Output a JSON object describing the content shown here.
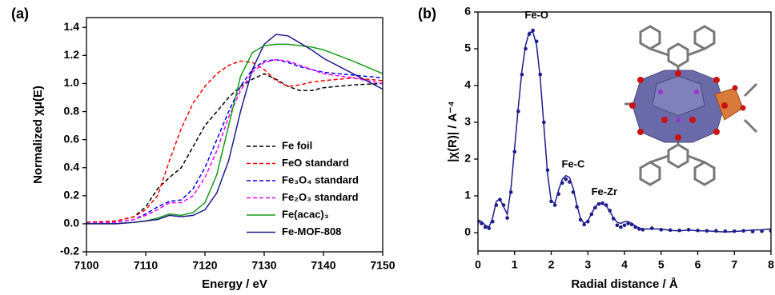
{
  "chart_data": [
    {
      "type": "line",
      "panel_label": "(a)",
      "x_label": "Energy / eV",
      "y_label": "Normalized χμ(E)",
      "x": [
        7100,
        7105,
        7108,
        7110,
        7112,
        7114,
        7116,
        7118,
        7120,
        7122,
        7124,
        7126,
        7128,
        7130,
        7132,
        7134,
        7136,
        7138,
        7140,
        7145,
        7150
      ],
      "xlim": [
        7100,
        7150
      ],
      "xticks": [
        7100,
        7110,
        7120,
        7130,
        7140,
        7150
      ],
      "ylim": [
        -0.2,
        1.47
      ],
      "yticks": [
        -0.2,
        {
          "value": 0,
          "label": "0.0"
        },
        0.2,
        0.4,
        0.6,
        0.8,
        {
          "value": 1,
          "label": "1.0"
        },
        1.2,
        1.4
      ],
      "legend": "lower right",
      "series": [
        {
          "name": "Fe foil",
          "color": "#000000",
          "line_style": "dashed",
          "values": [
            0.01,
            0.02,
            0.05,
            0.12,
            0.25,
            0.33,
            0.4,
            0.55,
            0.7,
            0.8,
            0.9,
            0.98,
            1.03,
            1.07,
            1.03,
            0.98,
            0.95,
            0.95,
            0.97,
            0.99,
            1.0
          ]
        },
        {
          "name": "FeO standard",
          "color": "#ff0000",
          "line_style": "dashed",
          "values": [
            0.01,
            0.02,
            0.05,
            0.1,
            0.2,
            0.45,
            0.68,
            0.86,
            0.98,
            1.07,
            1.13,
            1.16,
            1.15,
            1.1,
            1.02,
            0.98,
            0.99,
            1.01,
            1.02,
            1.04,
            1.02
          ]
        },
        {
          "name": "Fe₃O₄ standard",
          "color": "#0000ff",
          "line_style": "dashed",
          "values": [
            0.005,
            0.01,
            0.03,
            0.07,
            0.12,
            0.16,
            0.17,
            0.25,
            0.4,
            0.6,
            0.8,
            0.98,
            1.1,
            1.16,
            1.17,
            1.15,
            1.12,
            1.1,
            1.08,
            1.06,
            1.04
          ]
        },
        {
          "name": "Fe₂O₃ standard",
          "color": "#ff00ff",
          "line_style": "dashed",
          "values": [
            0.005,
            0.01,
            0.03,
            0.06,
            0.1,
            0.15,
            0.15,
            0.2,
            0.33,
            0.52,
            0.76,
            0.95,
            1.08,
            1.15,
            1.17,
            1.16,
            1.13,
            1.1,
            1.07,
            1.04,
            1.0
          ]
        },
        {
          "name": "Fe(acac)₃",
          "color": "#179a17",
          "line_style": "solid",
          "values": [
            0,
            0,
            0.01,
            0.02,
            0.04,
            0.07,
            0.06,
            0.08,
            0.15,
            0.35,
            0.7,
            1.05,
            1.22,
            1.27,
            1.28,
            1.28,
            1.27,
            1.26,
            1.24,
            1.16,
            1.07
          ]
        },
        {
          "name": "Fe-MOF-808",
          "color": "#1c1c8c",
          "line_style": "solid",
          "values": [
            0,
            0,
            0.01,
            0.02,
            0.03,
            0.06,
            0.05,
            0.06,
            0.1,
            0.22,
            0.45,
            0.8,
            1.1,
            1.28,
            1.35,
            1.34,
            1.29,
            1.24,
            1.18,
            1.07,
            0.96
          ]
        }
      ]
    },
    {
      "type": "line",
      "panel_label": "(b)",
      "x_label": "Radial distance / Å",
      "y_label": "|χ(R)| / A⁻⁴",
      "x": [
        0,
        0.1,
        0.2,
        0.3,
        0.4,
        0.5,
        0.6,
        0.7,
        0.8,
        0.9,
        1.0,
        1.1,
        1.2,
        1.3,
        1.4,
        1.5,
        1.6,
        1.7,
        1.8,
        1.9,
        2.0,
        2.1,
        2.2,
        2.3,
        2.4,
        2.5,
        2.6,
        2.7,
        2.8,
        2.9,
        3.0,
        3.1,
        3.2,
        3.3,
        3.4,
        3.5,
        3.6,
        3.7,
        3.8,
        3.9,
        4.0,
        4.1,
        4.2,
        4.3,
        4.4,
        4.5,
        4.75,
        5,
        5.25,
        5.5,
        5.75,
        6,
        6.25,
        6.5,
        6.75,
        7,
        7.25,
        7.5,
        7.75,
        8
      ],
      "xlim": [
        0,
        8
      ],
      "xticks": [
        0,
        1,
        2,
        3,
        4,
        5,
        6,
        7,
        8
      ],
      "ylim": [
        -0.5,
        6
      ],
      "yticks": [
        0,
        1,
        2,
        3,
        4,
        5,
        6
      ],
      "annotations": [
        "Fe-O",
        "Fe-C",
        "Fe-Zr"
      ],
      "series": [
        {
          "color": "#1c1c8c",
          "line_style": "dots",
          "values": [
            0.3,
            0.25,
            0.15,
            0.12,
            0.3,
            0.75,
            0.9,
            0.75,
            0.4,
            1.1,
            2.2,
            3.3,
            4.3,
            5.0,
            5.4,
            5.5,
            5.2,
            4.3,
            3.0,
            1.7,
            0.85,
            0.75,
            1.05,
            1.35,
            1.45,
            1.38,
            1.1,
            0.7,
            0.35,
            0.22,
            0.3,
            0.5,
            0.68,
            0.78,
            0.8,
            0.75,
            0.6,
            0.38,
            0.2,
            0.15,
            0.2,
            0.25,
            0.22,
            0.15,
            0.1,
            0.08,
            0.12,
            0.08,
            0.07,
            0.06,
            0.08,
            0.06,
            0.05,
            0.05,
            0.04,
            0.04,
            0.05,
            0.03,
            0.04,
            0.05
          ]
        },
        {
          "color": "#1c1c8c",
          "line_style": "solid",
          "values": [
            0.35,
            0.3,
            0.2,
            0.15,
            0.4,
            0.85,
            0.92,
            0.7,
            0.5,
            1.2,
            2.3,
            3.4,
            4.4,
            5.1,
            5.45,
            5.45,
            5.1,
            4.2,
            2.9,
            1.6,
            0.85,
            0.8,
            1.15,
            1.45,
            1.55,
            1.5,
            1.2,
            0.75,
            0.38,
            0.25,
            0.32,
            0.52,
            0.7,
            0.8,
            0.8,
            0.73,
            0.58,
            0.4,
            0.28,
            0.25,
            0.3,
            0.3,
            0.25,
            0.18,
            0.12,
            0.1,
            0.1,
            0.1,
            0.06,
            0.05,
            0.07,
            0.05,
            0.05,
            0.03,
            0.02,
            0.03,
            0.05,
            0.07,
            0.08,
            0.1
          ]
        }
      ]
    }
  ]
}
